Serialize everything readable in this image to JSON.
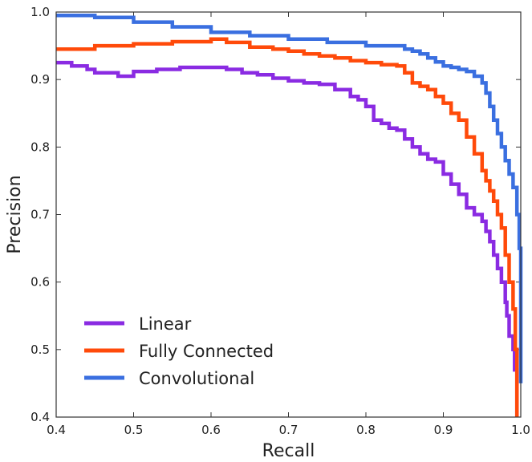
{
  "chart_data": {
    "type": "line",
    "xlabel": "Recall",
    "ylabel": "Precision",
    "xlim": [
      0.4,
      1.0
    ],
    "ylim": [
      0.4,
      1.0
    ],
    "x_ticks": [
      "0.4",
      "0.5",
      "0.6",
      "0.7",
      "0.8",
      "0.9",
      "1.0"
    ],
    "y_ticks": [
      "0.4",
      "0.5",
      "0.6",
      "0.7",
      "0.8",
      "0.9",
      "1.0"
    ],
    "grid": false,
    "legend_position": "bottom-left",
    "series": [
      {
        "name": "Linear",
        "color": "#8a2be2",
        "x": [
          0.4,
          0.42,
          0.44,
          0.45,
          0.47,
          0.48,
          0.5,
          0.53,
          0.56,
          0.6,
          0.62,
          0.64,
          0.66,
          0.68,
          0.7,
          0.72,
          0.74,
          0.76,
          0.78,
          0.79,
          0.8,
          0.81,
          0.82,
          0.83,
          0.84,
          0.85,
          0.86,
          0.87,
          0.88,
          0.89,
          0.9,
          0.91,
          0.92,
          0.93,
          0.94,
          0.95,
          0.955,
          0.96,
          0.965,
          0.97,
          0.975,
          0.98,
          0.982,
          0.985,
          0.99,
          0.992,
          0.995
        ],
        "y": [
          0.925,
          0.92,
          0.915,
          0.91,
          0.91,
          0.905,
          0.912,
          0.915,
          0.918,
          0.918,
          0.915,
          0.91,
          0.907,
          0.902,
          0.898,
          0.895,
          0.893,
          0.885,
          0.875,
          0.87,
          0.86,
          0.84,
          0.835,
          0.828,
          0.825,
          0.812,
          0.8,
          0.79,
          0.782,
          0.778,
          0.76,
          0.745,
          0.73,
          0.71,
          0.7,
          0.69,
          0.675,
          0.66,
          0.64,
          0.62,
          0.6,
          0.57,
          0.55,
          0.52,
          0.5,
          0.47,
          0.4
        ]
      },
      {
        "name": "Fully Connected",
        "color": "#ff4a0a",
        "x": [
          0.4,
          0.45,
          0.5,
          0.55,
          0.6,
          0.62,
          0.65,
          0.68,
          0.7,
          0.72,
          0.74,
          0.76,
          0.78,
          0.8,
          0.82,
          0.84,
          0.85,
          0.86,
          0.87,
          0.88,
          0.89,
          0.9,
          0.91,
          0.92,
          0.93,
          0.94,
          0.95,
          0.955,
          0.96,
          0.965,
          0.97,
          0.975,
          0.98,
          0.985,
          0.99,
          0.993,
          0.995
        ],
        "y": [
          0.945,
          0.95,
          0.953,
          0.956,
          0.96,
          0.955,
          0.948,
          0.945,
          0.942,
          0.938,
          0.935,
          0.932,
          0.928,
          0.925,
          0.922,
          0.92,
          0.91,
          0.895,
          0.89,
          0.885,
          0.875,
          0.865,
          0.85,
          0.84,
          0.815,
          0.79,
          0.765,
          0.75,
          0.735,
          0.72,
          0.7,
          0.68,
          0.64,
          0.6,
          0.56,
          0.5,
          0.4
        ]
      },
      {
        "name": "Convolutional",
        "color": "#3a6fe0",
        "x": [
          0.4,
          0.45,
          0.5,
          0.55,
          0.6,
          0.65,
          0.7,
          0.75,
          0.8,
          0.85,
          0.86,
          0.87,
          0.88,
          0.89,
          0.9,
          0.91,
          0.92,
          0.93,
          0.94,
          0.95,
          0.955,
          0.96,
          0.965,
          0.97,
          0.975,
          0.98,
          0.985,
          0.99,
          0.995,
          0.998,
          1.0
        ],
        "y": [
          0.995,
          0.992,
          0.985,
          0.978,
          0.97,
          0.965,
          0.96,
          0.955,
          0.95,
          0.945,
          0.942,
          0.938,
          0.932,
          0.926,
          0.92,
          0.918,
          0.915,
          0.912,
          0.905,
          0.895,
          0.88,
          0.86,
          0.84,
          0.82,
          0.8,
          0.78,
          0.76,
          0.74,
          0.7,
          0.65,
          0.45
        ]
      }
    ]
  }
}
